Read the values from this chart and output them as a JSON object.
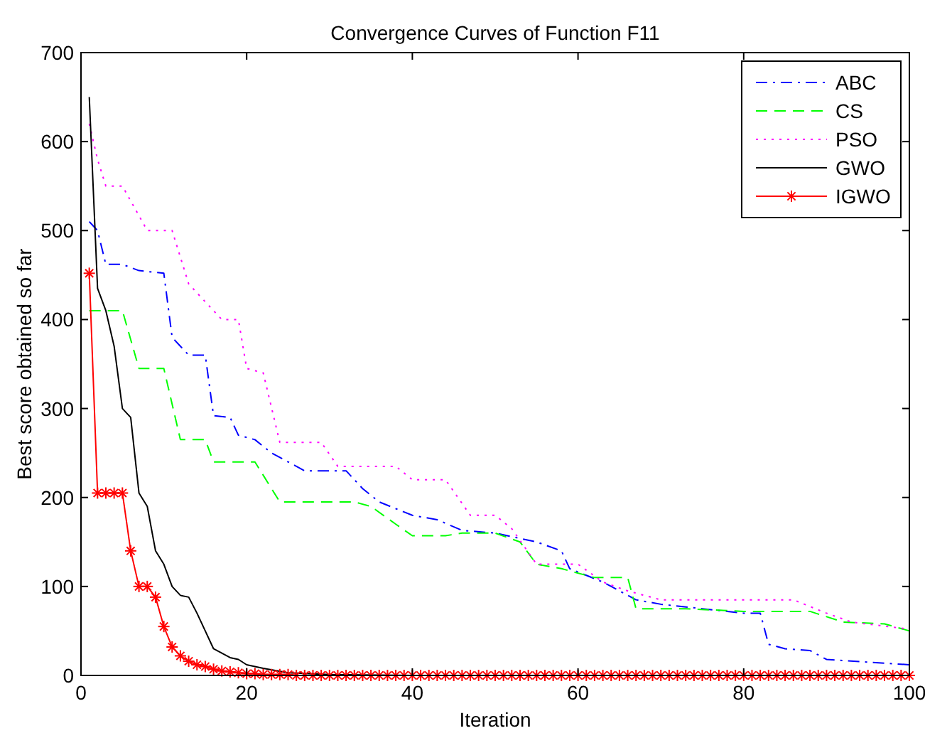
{
  "chart_data": {
    "type": "line",
    "title": "Convergence Curves of Function F11",
    "xlabel": "Iteration",
    "ylabel": "Best score obtained so far",
    "xlim": [
      0,
      100
    ],
    "ylim": [
      0,
      700
    ],
    "xticks": [
      0,
      20,
      40,
      60,
      80,
      100
    ],
    "yticks": [
      0,
      100,
      200,
      300,
      400,
      500,
      600,
      700
    ],
    "grid": false,
    "legend": "top right",
    "series": [
      {
        "name": "ABC",
        "color": "#0000ff",
        "line_style": "dashdot",
        "marker": "none",
        "x": [
          1,
          2,
          3,
          5,
          7,
          10,
          11,
          12,
          13,
          15,
          16,
          18,
          19,
          21,
          23,
          25,
          27,
          32,
          34,
          36,
          40,
          43,
          46,
          50,
          55,
          58,
          59,
          63,
          67,
          70,
          75,
          80,
          82,
          83,
          85,
          88,
          90,
          95,
          100
        ],
        "values": [
          510,
          500,
          462,
          462,
          455,
          452,
          380,
          370,
          360,
          360,
          292,
          290,
          270,
          265,
          250,
          240,
          230,
          230,
          210,
          195,
          180,
          175,
          163,
          160,
          150,
          140,
          120,
          105,
          85,
          80,
          75,
          70,
          70,
          35,
          30,
          28,
          18,
          15,
          12
        ]
      },
      {
        "name": "CS",
        "color": "#00ff00",
        "line_style": "dashed",
        "marker": "none",
        "x": [
          1,
          5,
          7,
          10,
          12,
          15,
          16,
          21,
          24,
          33,
          35,
          38,
          40,
          44,
          46,
          50,
          53,
          55,
          58,
          62,
          66,
          67,
          73,
          80,
          88,
          92,
          97,
          100
        ],
        "values": [
          410,
          410,
          345,
          345,
          265,
          265,
          240,
          240,
          195,
          195,
          190,
          170,
          157,
          157,
          160,
          160,
          150,
          125,
          120,
          110,
          110,
          75,
          75,
          72,
          72,
          60,
          58,
          50
        ]
      },
      {
        "name": "PSO",
        "color": "#ff00ff",
        "line_style": "dotted",
        "marker": "none",
        "x": [
          1,
          2,
          3,
          5,
          8,
          11,
          13,
          15,
          17,
          19,
          20,
          22,
          24,
          29,
          31,
          38,
          40,
          44,
          47,
          50,
          52,
          55,
          60,
          63,
          66,
          70,
          86,
          90,
          93,
          100
        ],
        "values": [
          620,
          580,
          550,
          550,
          500,
          500,
          440,
          420,
          400,
          400,
          345,
          340,
          262,
          262,
          235,
          235,
          220,
          220,
          180,
          180,
          165,
          125,
          125,
          105,
          95,
          85,
          85,
          70,
          60,
          52
        ]
      },
      {
        "name": "GWO",
        "color": "#000000",
        "line_style": "solid",
        "marker": "none",
        "x": [
          1,
          2,
          3,
          4,
          5,
          6,
          7,
          8,
          9,
          10,
          11,
          12,
          13,
          14,
          15,
          16,
          17,
          18,
          19,
          20,
          22,
          25,
          30,
          40,
          100
        ],
        "values": [
          650,
          435,
          410,
          370,
          300,
          290,
          205,
          190,
          140,
          125,
          100,
          90,
          88,
          70,
          50,
          30,
          25,
          20,
          18,
          12,
          8,
          3,
          1,
          0,
          0
        ]
      },
      {
        "name": "IGWO",
        "color": "#ff0000",
        "line_style": "solid",
        "marker": "cross",
        "x": [
          1,
          2,
          3,
          4,
          5,
          6,
          7,
          8,
          9,
          10,
          11,
          12,
          13,
          14,
          15,
          16,
          17,
          18,
          19,
          20,
          21,
          22,
          23,
          24,
          25,
          26,
          27,
          28,
          29,
          30,
          31,
          32,
          33,
          34,
          35,
          36,
          37,
          38,
          39,
          40,
          41,
          42,
          43,
          44,
          45,
          46,
          47,
          48,
          49,
          50,
          51,
          52,
          53,
          54,
          55,
          56,
          57,
          58,
          59,
          60,
          61,
          62,
          63,
          64,
          65,
          66,
          67,
          68,
          69,
          70,
          71,
          72,
          73,
          74,
          75,
          76,
          77,
          78,
          79,
          80,
          81,
          82,
          83,
          84,
          85,
          86,
          87,
          88,
          89,
          90,
          91,
          92,
          93,
          94,
          95,
          96,
          97,
          98,
          99,
          100
        ],
        "values": [
          452,
          205,
          205,
          205,
          205,
          140,
          100,
          100,
          88,
          55,
          32,
          22,
          16,
          12,
          10,
          7,
          5,
          4,
          3,
          2,
          2,
          1,
          1,
          1,
          1,
          0,
          0,
          0,
          0,
          0,
          0,
          0,
          0,
          0,
          0,
          0,
          0,
          0,
          0,
          0,
          0,
          0,
          0,
          0,
          0,
          0,
          0,
          0,
          0,
          0,
          0,
          0,
          0,
          0,
          0,
          0,
          0,
          0,
          0,
          0,
          0,
          0,
          0,
          0,
          0,
          0,
          0,
          0,
          0,
          0,
          0,
          0,
          0,
          0,
          0,
          0,
          0,
          0,
          0,
          0,
          0,
          0,
          0,
          0,
          0,
          0,
          0,
          0,
          0,
          0,
          0,
          0,
          0,
          0,
          0,
          0,
          0,
          0,
          0,
          0
        ]
      }
    ]
  }
}
